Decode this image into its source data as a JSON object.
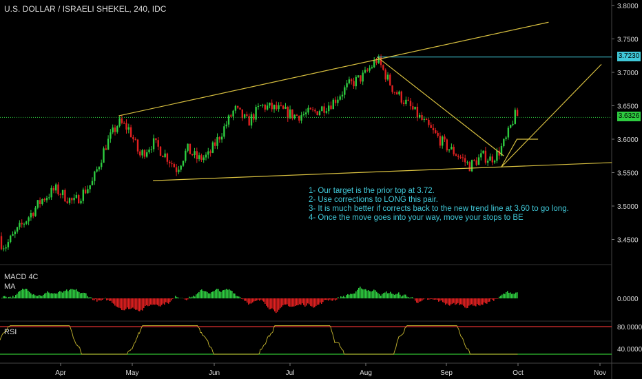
{
  "chart_title": "U.S. DOLLAR / ISRAELI SHEKEL, 240, IDC",
  "notes": [
    "1- Our target is the prior top at 3.72.",
    "2- Use corrections to LONG this pair.",
    "3- It is much better if corrects back to the new trend line at 3.60 to go long.",
    "4- Once the move goes into your way, move your stops to BE"
  ],
  "price_tags": {
    "target": "3.7230",
    "current": "3.6326"
  },
  "indicators": {
    "macd_line1": "MACD 4C",
    "macd_line2": "MA",
    "rsi": "RSI"
  },
  "colors": {
    "background": "#000000",
    "bull": "#2ecc40",
    "bear": "#e02020",
    "trendline": "#d8c040",
    "target_line": "#40c8d8",
    "note_text": "#40c8d8",
    "rsi_line": "#c8b830",
    "rsi_upper": "#e03030",
    "rsi_lower": "#30c030"
  },
  "chart_data": [
    {
      "type": "line",
      "title": "U.S. DOLLAR / ISRAELI SHEKEL, 240, IDC",
      "series_kind": "candlestick",
      "x_ticks": [
        "Apr",
        "May",
        "Jun",
        "Jul",
        "Aug",
        "Sep",
        "Oct",
        "Nov"
      ],
      "y_ticks": [
        "3.8000",
        "3.7500",
        "3.7000",
        "3.6500",
        "3.6000",
        "3.5500",
        "3.5000",
        "3.4500"
      ],
      "ylim": [
        3.42,
        3.8
      ],
      "price_path": [
        {
          "x": "Mar 15",
          "y": 3.455
        },
        {
          "x": "Mar 20",
          "y": 3.44
        },
        {
          "x": "Mar 28",
          "y": 3.48
        },
        {
          "x": "Apr 3",
          "y": 3.51
        },
        {
          "x": "Apr 8",
          "y": 3.525
        },
        {
          "x": "Apr 15",
          "y": 3.505
        },
        {
          "x": "Apr 22",
          "y": 3.535
        },
        {
          "x": "Apr 27",
          "y": 3.59
        },
        {
          "x": "May 2",
          "y": 3.625
        },
        {
          "x": "May 6",
          "y": 3.615
        },
        {
          "x": "May 10",
          "y": 3.575
        },
        {
          "x": "May 15",
          "y": 3.595
        },
        {
          "x": "May 20",
          "y": 3.575
        },
        {
          "x": "May 24",
          "y": 3.555
        },
        {
          "x": "May 28",
          "y": 3.585
        },
        {
          "x": "Jun 1",
          "y": 3.57
        },
        {
          "x": "Jun 5",
          "y": 3.575
        },
        {
          "x": "Jun 10",
          "y": 3.61
        },
        {
          "x": "Jun 15",
          "y": 3.645
        },
        {
          "x": "Jun 20",
          "y": 3.625
        },
        {
          "x": "Jun 25",
          "y": 3.65
        },
        {
          "x": "Jul 1",
          "y": 3.645
        },
        {
          "x": "Jul 8",
          "y": 3.635
        },
        {
          "x": "Jul 15",
          "y": 3.64
        },
        {
          "x": "Jul 22",
          "y": 3.655
        },
        {
          "x": "Jul 28",
          "y": 3.68
        },
        {
          "x": "Aug 3",
          "y": 3.695
        },
        {
          "x": "Aug 8",
          "y": 3.72
        },
        {
          "x": "Aug 14",
          "y": 3.675
        },
        {
          "x": "Aug 20",
          "y": 3.65
        },
        {
          "x": "Aug 28",
          "y": 3.615
        },
        {
          "x": "Sep 3",
          "y": 3.59
        },
        {
          "x": "Sep 8",
          "y": 3.575
        },
        {
          "x": "Sep 12",
          "y": 3.56
        },
        {
          "x": "Sep 17",
          "y": 3.575
        },
        {
          "x": "Sep 20",
          "y": 3.57
        },
        {
          "x": "Sep 23",
          "y": 3.58
        },
        {
          "x": "Sep 26",
          "y": 3.6
        },
        {
          "x": "Sep 29",
          "y": 3.635
        }
      ],
      "last_price": 3.6326,
      "target_price": 3.723,
      "upper_trendline": [
        {
          "x": "May 2",
          "y": 3.635
        },
        {
          "x": "Aug 8",
          "y": 3.725
        },
        {
          "x": "Oct 12",
          "y": 3.775
        }
      ],
      "lower_trendline": [
        {
          "x": "May 15",
          "y": 3.538
        },
        {
          "x": "Nov 5",
          "y": 3.565
        }
      ],
      "support_level": 3.6
    },
    {
      "type": "bar",
      "title": "MACD 4C",
      "y_ticks": [
        "0.0000"
      ],
      "colors": {
        "above_zero": "#2ecc40",
        "below_zero": "#e02020"
      }
    },
    {
      "type": "line",
      "title": "RSI",
      "y_ticks": [
        "80.0000",
        "40.0000"
      ],
      "levels": [
        80,
        30
      ]
    }
  ]
}
